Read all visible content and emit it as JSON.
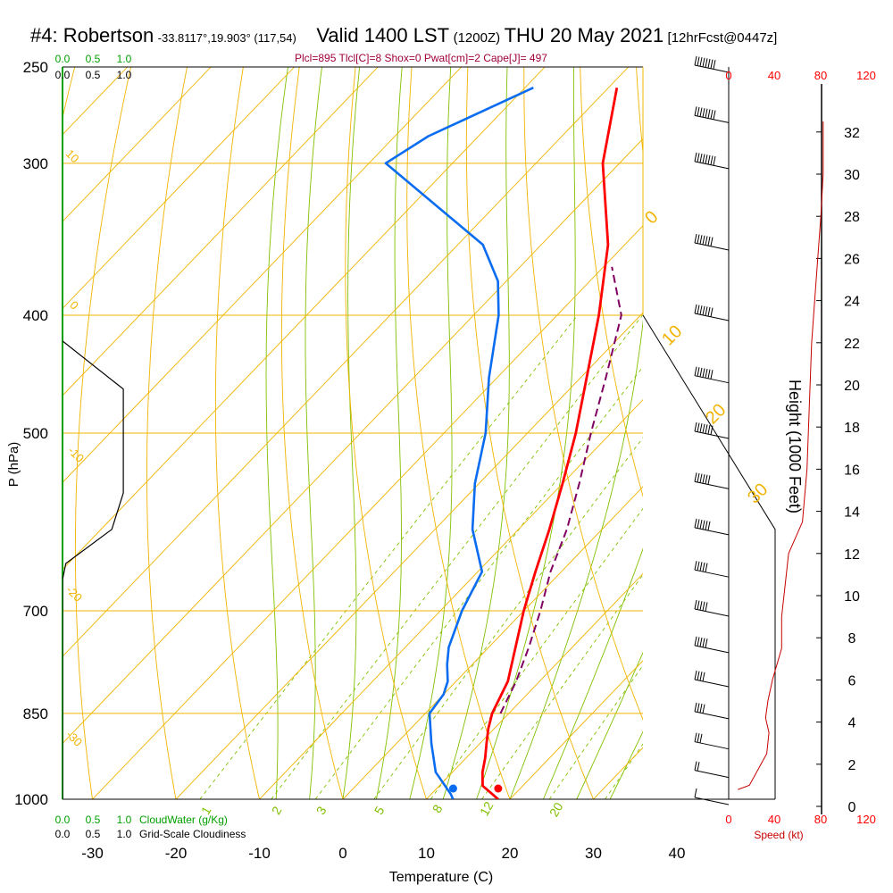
{
  "title": {
    "station": "#4: Robertson",
    "coords": "-33.8117°,19.903° (117,54)",
    "valid": "Valid 1400 LST",
    "utc": "(1200Z)",
    "date": "THU 20 May 2021",
    "forecast": "[12hrFcst@0447z]"
  },
  "indices_text": "Plcl=895 Tlcl[C]=8 Shox=0 Pwat[cm]=2 Cape[J]= 497",
  "colors": {
    "temperature": "#ff0000",
    "dewpoint": "#0a6cf0",
    "parcel": "#800060",
    "isotherms": "#f0b400",
    "dry_adiabats": "#f0b400",
    "moist_adiabats": "#80c000",
    "mixing_ratio": "#80c000",
    "cloud": "#000000",
    "wind_speed": "#c80000",
    "cloud_axis": "#00a000"
  },
  "chart_data": {
    "type": "line",
    "subtype": "skew-T log-P sounding",
    "xlabel": "Temperature (C)",
    "ylabel": "P (hPa)",
    "xticks": [
      "-30",
      "-20",
      "-10",
      "0",
      "10",
      "20",
      "30",
      "40"
    ],
    "yticks": [
      "250",
      "300",
      "400",
      "500",
      "700",
      "850",
      "1000"
    ],
    "pressure_range_hpa": [
      1000,
      250
    ],
    "height_axis": {
      "label": "Height (1000 Feet)",
      "ticks": [
        "0",
        "2",
        "4",
        "6",
        "8",
        "10",
        "12",
        "14",
        "16",
        "18",
        "20",
        "22",
        "24",
        "26",
        "28",
        "30",
        "32"
      ]
    },
    "speed_axis": {
      "label": "Speed (kt)",
      "ticks": [
        "0",
        "40",
        "80",
        "120"
      ]
    },
    "cloudwater_axis": {
      "label": "CloudWater (g/Kg)",
      "ticks": [
        "0.0",
        "0.5",
        "1.0"
      ]
    },
    "cloudiness_axis": {
      "label": "Grid-Scale Cloudiness",
      "ticks": [
        "0.0",
        "0.5",
        "1.0"
      ]
    },
    "isotherm_labels": [
      "0",
      "10",
      "20",
      "30"
    ],
    "left_isotherm_labels": [
      "10",
      "0",
      "-10",
      "-20",
      "-30"
    ],
    "mixing_ratio_labels": [
      "1",
      "2",
      "3",
      "5",
      "8",
      "12",
      "20"
    ],
    "series": [
      {
        "name": "Temperature",
        "points": [
          {
            "p": 1000,
            "t": 18.6
          },
          {
            "p": 975,
            "t": 15.2
          },
          {
            "p": 950,
            "t": 13.6
          },
          {
            "p": 925,
            "t": 12.3
          },
          {
            "p": 900,
            "t": 10.8
          },
          {
            "p": 875,
            "t": 9.3
          },
          {
            "p": 850,
            "t": 8.0
          },
          {
            "p": 800,
            "t": 6.2
          },
          {
            "p": 750,
            "t": 3.2
          },
          {
            "p": 700,
            "t": 0.0
          },
          {
            "p": 650,
            "t": -3.1
          },
          {
            "p": 600,
            "t": -6.3
          },
          {
            "p": 550,
            "t": -10.0
          },
          {
            "p": 500,
            "t": -14.2
          },
          {
            "p": 450,
            "t": -19.3
          },
          {
            "p": 400,
            "t": -25.0
          },
          {
            "p": 350,
            "t": -32.0
          },
          {
            "p": 300,
            "t": -42.0
          },
          {
            "p": 260,
            "t": -49.0
          }
        ]
      },
      {
        "name": "Dewpoint",
        "points": [
          {
            "p": 1000,
            "t": 13.2
          },
          {
            "p": 990,
            "t": 12.3
          },
          {
            "p": 950,
            "t": 8.0
          },
          {
            "p": 900,
            "t": 4.2
          },
          {
            "p": 850,
            "t": 0.5
          },
          {
            "p": 820,
            "t": 0.0
          },
          {
            "p": 800,
            "t": -1.0
          },
          {
            "p": 775,
            "t": -3.0
          },
          {
            "p": 750,
            "t": -4.8
          },
          {
            "p": 700,
            "t": -7.4
          },
          {
            "p": 650,
            "t": -9.5
          },
          {
            "p": 600,
            "t": -15.5
          },
          {
            "p": 550,
            "t": -20.5
          },
          {
            "p": 500,
            "t": -25.0
          },
          {
            "p": 450,
            "t": -31.0
          },
          {
            "p": 400,
            "t": -37.0
          },
          {
            "p": 375,
            "t": -41.0
          },
          {
            "p": 350,
            "t": -47.0
          },
          {
            "p": 300,
            "t": -68.0
          },
          {
            "p": 285,
            "t": -66.0
          },
          {
            "p": 260,
            "t": -59.0
          }
        ]
      },
      {
        "name": "Parcel",
        "points": [
          {
            "p": 850,
            "t": 9.0
          },
          {
            "p": 800,
            "t": 7.2
          },
          {
            "p": 750,
            "t": 4.8
          },
          {
            "p": 700,
            "t": 2.0
          },
          {
            "p": 650,
            "t": -1.3
          },
          {
            "p": 600,
            "t": -4.2
          },
          {
            "p": 550,
            "t": -8.0
          },
          {
            "p": 500,
            "t": -12.4
          },
          {
            "p": 450,
            "t": -17.0
          },
          {
            "p": 400,
            "t": -22.3
          },
          {
            "p": 365,
            "t": -29.0
          }
        ]
      },
      {
        "name": "Cloudiness",
        "points": [
          {
            "p": 1000,
            "v": 0.0
          },
          {
            "p": 660,
            "v": 0.0
          },
          {
            "p": 640,
            "v": 0.04
          },
          {
            "p": 600,
            "v": 0.6
          },
          {
            "p": 560,
            "v": 0.74
          },
          {
            "p": 460,
            "v": 0.74
          },
          {
            "p": 420,
            "v": 0.0
          }
        ]
      },
      {
        "name": "Wind speed",
        "points": [
          {
            "h": 0.8,
            "kt": 8
          },
          {
            "h": 1.0,
            "kt": 18
          },
          {
            "h": 2.5,
            "kt": 33
          },
          {
            "h": 3.5,
            "kt": 35
          },
          {
            "h": 4.2,
            "kt": 32
          },
          {
            "h": 5.0,
            "kt": 34
          },
          {
            "h": 6.0,
            "kt": 38
          },
          {
            "h": 7.5,
            "kt": 46
          },
          {
            "h": 9.0,
            "kt": 46
          },
          {
            "h": 10.0,
            "kt": 48
          },
          {
            "h": 12.0,
            "kt": 52
          },
          {
            "h": 13.5,
            "kt": 64
          },
          {
            "h": 16.0,
            "kt": 68
          },
          {
            "h": 19.0,
            "kt": 70
          },
          {
            "h": 22.0,
            "kt": 72
          },
          {
            "h": 25.0,
            "kt": 76
          },
          {
            "h": 28.0,
            "kt": 80
          },
          {
            "h": 30.0,
            "kt": 82
          },
          {
            "h": 32.5,
            "kt": 82
          }
        ]
      }
    ],
    "wind_barbs": [
      {
        "p": 1000,
        "dir": 250,
        "kt": 10
      },
      {
        "p": 950,
        "dir": 250,
        "kt": 20
      },
      {
        "p": 900,
        "dir": 255,
        "kt": 30
      },
      {
        "p": 850,
        "dir": 260,
        "kt": 35
      },
      {
        "p": 800,
        "dir": 265,
        "kt": 40
      },
      {
        "p": 750,
        "dir": 270,
        "kt": 45
      },
      {
        "p": 700,
        "dir": 275,
        "kt": 50
      },
      {
        "p": 650,
        "dir": 280,
        "kt": 50
      },
      {
        "p": 600,
        "dir": 285,
        "kt": 55
      },
      {
        "p": 550,
        "dir": 290,
        "kt": 60
      },
      {
        "p": 500,
        "dir": 290,
        "kt": 65
      },
      {
        "p": 450,
        "dir": 295,
        "kt": 65
      },
      {
        "p": 400,
        "dir": 295,
        "kt": 70
      },
      {
        "p": 350,
        "dir": 295,
        "kt": 70
      },
      {
        "p": 300,
        "dir": 300,
        "kt": 75
      },
      {
        "p": 275,
        "dir": 300,
        "kt": 75
      },
      {
        "p": 250,
        "dir": 300,
        "kt": 80
      }
    ]
  }
}
